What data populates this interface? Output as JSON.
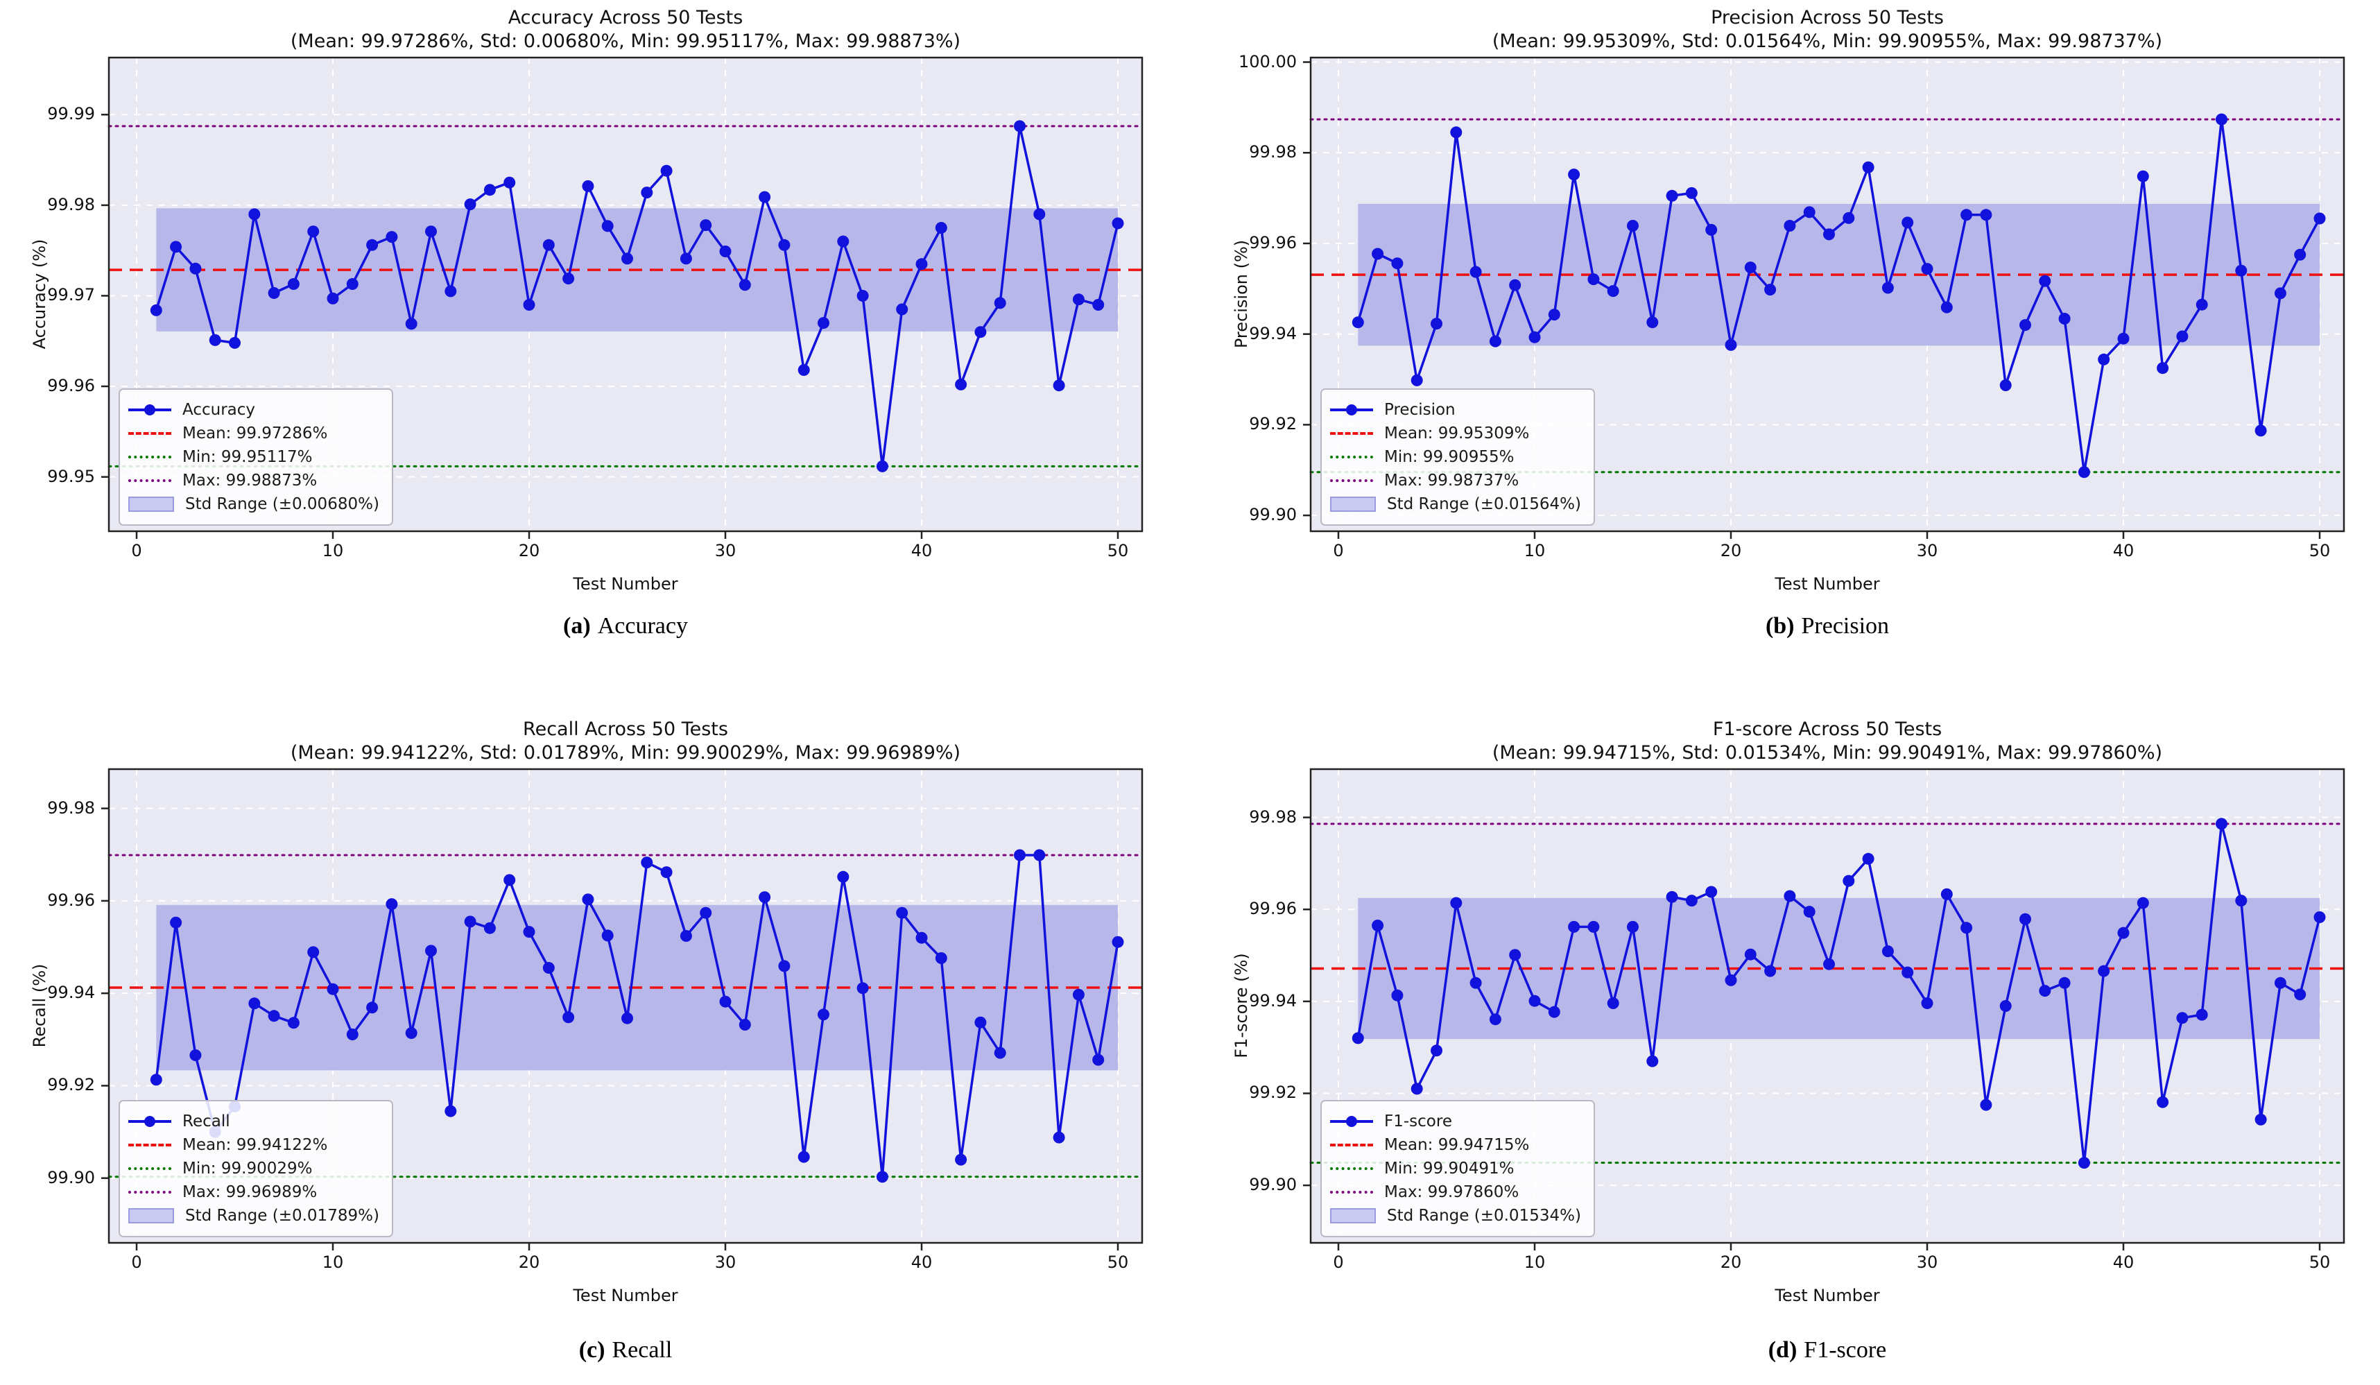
{
  "figure": {
    "background": "#ffffff",
    "x_axis_label": "Test Number",
    "x_ticks": [
      0,
      10,
      20,
      30,
      40,
      50
    ],
    "x_tick_labels": [
      "0",
      "10",
      "20",
      "30",
      "40",
      "50"
    ]
  },
  "colors": {
    "line": "#1212dd",
    "marker": "#1212dd",
    "mean_line": "#ee1111",
    "min_line": "#007700",
    "max_line": "#7d007d",
    "std_band": "#b7b7e9",
    "plot_bg": "#e9e9f3",
    "grid": "#ffffff",
    "spine": "#222222"
  },
  "chart_data": [
    {
      "id": "accuracy",
      "type": "line",
      "title": "Accuracy Across 50 Tests",
      "subtitle": "(Mean: 99.97286%, Std: 0.00680%, Min: 99.95117%, Max: 99.98873%)",
      "xlabel": "Test Number",
      "ylabel": "Accuracy (%)",
      "caption_tag": "(a)",
      "caption_label": "Accuracy",
      "legend": {
        "series": "Accuracy",
        "mean": "Mean: 99.97286%",
        "min": "Min: 99.95117%",
        "max": "Max: 99.98873%",
        "std": "Std Range (±0.00680%)"
      },
      "stats": {
        "mean": 99.97286,
        "std": 0.0068,
        "min": 99.95117,
        "max": 99.98873
      },
      "x_start": 1,
      "values": [
        99.9684,
        99.9754,
        99.973,
        99.9651,
        99.9648,
        99.979,
        99.9703,
        99.9713,
        99.9771,
        99.9697,
        99.9713,
        99.9756,
        99.9765,
        99.9669,
        99.9771,
        99.9705,
        99.9801,
        99.9817,
        99.9825,
        99.969,
        99.9756,
        99.9719,
        99.9821,
        99.9777,
        99.9741,
        99.9814,
        99.9838,
        99.9741,
        99.9778,
        99.9749,
        99.9712,
        99.9809,
        99.9756,
        99.9618,
        99.967,
        99.976,
        99.97,
        99.95117,
        99.9685,
        99.9735,
        99.9775,
        99.9602,
        99.966,
        99.9692,
        99.98873,
        99.979,
        99.9601,
        99.9696,
        99.969,
        99.978
      ],
      "ylim": [
        99.944,
        99.9963
      ],
      "yticks": [
        99.95,
        99.96,
        99.97,
        99.98,
        99.99
      ],
      "ytick_labels": [
        "99.95",
        "99.96",
        "99.97",
        "99.98",
        "99.99"
      ],
      "xlim": [
        -1.45,
        52.45
      ],
      "grid": true,
      "legend_position": "lower left"
    },
    {
      "id": "precision",
      "type": "line",
      "title": "Precision Across 50 Tests",
      "subtitle": "(Mean: 99.95309%, Std: 0.01564%, Min: 99.90955%, Max: 99.98737%)",
      "xlabel": "Test Number",
      "ylabel": "Precision (%)",
      "caption_tag": "(b)",
      "caption_label": "Precision",
      "legend": {
        "series": "Precision",
        "mean": "Mean: 99.95309%",
        "min": "Min: 99.90955%",
        "max": "Max: 99.98737%",
        "std": "Std Range (±0.01564%)"
      },
      "stats": {
        "mean": 99.95309,
        "std": 0.01564,
        "min": 99.90955,
        "max": 99.98737
      },
      "x_start": 1,
      "values": [
        99.9426,
        99.9577,
        99.9556,
        99.9298,
        99.9423,
        99.9845,
        99.9537,
        99.9384,
        99.9508,
        99.9393,
        99.9443,
        99.9752,
        99.9521,
        99.9495,
        99.9639,
        99.9426,
        99.9705,
        99.9711,
        99.963,
        99.9376,
        99.9547,
        99.9498,
        99.9639,
        99.9669,
        99.962,
        99.9656,
        99.9768,
        99.9502,
        99.9646,
        99.9544,
        99.9459,
        99.9663,
        99.9663,
        99.9287,
        99.942,
        99.9517,
        99.9434,
        99.90955,
        99.9344,
        99.939,
        99.9748,
        99.9325,
        99.9395,
        99.9465,
        99.98737,
        99.954,
        99.9187,
        99.949,
        99.9575,
        99.9655
      ],
      "ylim": [
        99.8965,
        100.001
      ],
      "yticks": [
        99.9,
        99.92,
        99.94,
        99.96,
        99.98,
        100.0
      ],
      "ytick_labels": [
        "99.90",
        "99.92",
        "99.94",
        "99.96",
        "99.98",
        "100.00"
      ],
      "xlim": [
        -1.45,
        52.45
      ],
      "grid": true,
      "legend_position": "lower left"
    },
    {
      "id": "recall",
      "type": "line",
      "title": "Recall Across 50 Tests",
      "subtitle": "(Mean: 99.94122%, Std: 0.01789%, Min: 99.90029%, Max: 99.96989%)",
      "xlabel": "Test Number",
      "ylabel": "Recall (%)",
      "caption_tag": "(c)",
      "caption_label": "Recall",
      "legend": {
        "series": "Recall",
        "mean": "Mean: 99.94122%",
        "min": "Min: 99.90029%",
        "max": "Max: 99.96989%",
        "std": "Std Range (±0.01789%)"
      },
      "stats": {
        "mean": 99.94122,
        "std": 0.01789,
        "min": 99.90029,
        "max": 99.96989
      },
      "x_start": 1,
      "values": [
        99.9213,
        99.9553,
        99.9266,
        99.91,
        99.9155,
        99.9378,
        99.9351,
        99.9336,
        99.9489,
        99.9409,
        99.9311,
        99.9369,
        99.9593,
        99.9314,
        99.9492,
        99.9145,
        99.9555,
        99.9541,
        99.9645,
        99.9533,
        99.9455,
        99.9348,
        99.9603,
        99.9525,
        99.9346,
        99.9683,
        99.9662,
        99.9524,
        99.9574,
        99.9382,
        99.9332,
        99.9608,
        99.9459,
        99.9046,
        99.9354,
        99.9652,
        99.9411,
        99.90029,
        99.9574,
        99.952,
        99.9476,
        99.904,
        99.9337,
        99.9271,
        99.96989,
        99.96989,
        99.9088,
        99.9397,
        99.9256,
        99.9511
      ],
      "ylim": [
        99.886,
        99.9885
      ],
      "yticks": [
        99.9,
        99.92,
        99.94,
        99.96,
        99.98
      ],
      "ytick_labels": [
        "99.90",
        "99.92",
        "99.94",
        "99.96",
        "99.98"
      ],
      "xlim": [
        -1.45,
        52.45
      ],
      "grid": true,
      "legend_position": "lower left"
    },
    {
      "id": "f1-score",
      "type": "line",
      "title": "F1-score Across 50 Tests",
      "subtitle": "(Mean: 99.94715%, Std: 0.01534%, Min: 99.90491%, Max: 99.97860%)",
      "xlabel": "Test Number",
      "ylabel": "F1-score (%)",
      "caption_tag": "(d)",
      "caption_label": "F1-score",
      "legend": {
        "series": "F1-score",
        "mean": "Mean: 99.94715%",
        "min": "Min: 99.90491%",
        "max": "Max: 99.97860%",
        "std": "Std Range (±0.01534%)"
      },
      "stats": {
        "mean": 99.94715,
        "std": 0.01534,
        "min": 99.90491,
        "max": 99.9786
      },
      "x_start": 1,
      "values": [
        99.932,
        99.9565,
        99.9413,
        99.921,
        99.9293,
        99.9614,
        99.944,
        99.9361,
        99.9501,
        99.9401,
        99.9377,
        99.9562,
        99.9562,
        99.9396,
        99.9562,
        99.927,
        99.9627,
        99.9619,
        99.9638,
        99.9446,
        99.9502,
        99.9466,
        99.9629,
        99.9595,
        99.9481,
        99.9662,
        99.971,
        99.9509,
        99.9463,
        99.9396,
        99.9633,
        99.956,
        99.9175,
        99.939,
        99.9579,
        99.9423,
        99.944,
        99.90491,
        99.9466,
        99.9549,
        99.9614,
        99.9181,
        99.9364,
        99.9371,
        99.9786,
        99.9619,
        99.9143,
        99.944,
        99.9415,
        99.9583
      ],
      "ylim": [
        99.8875,
        99.9905
      ],
      "yticks": [
        99.9,
        99.92,
        99.94,
        99.96,
        99.98
      ],
      "ytick_labels": [
        "99.90",
        "99.92",
        "99.94",
        "99.96",
        "99.98"
      ],
      "xlim": [
        -1.45,
        52.45
      ],
      "grid": true,
      "legend_position": "lower left"
    }
  ]
}
